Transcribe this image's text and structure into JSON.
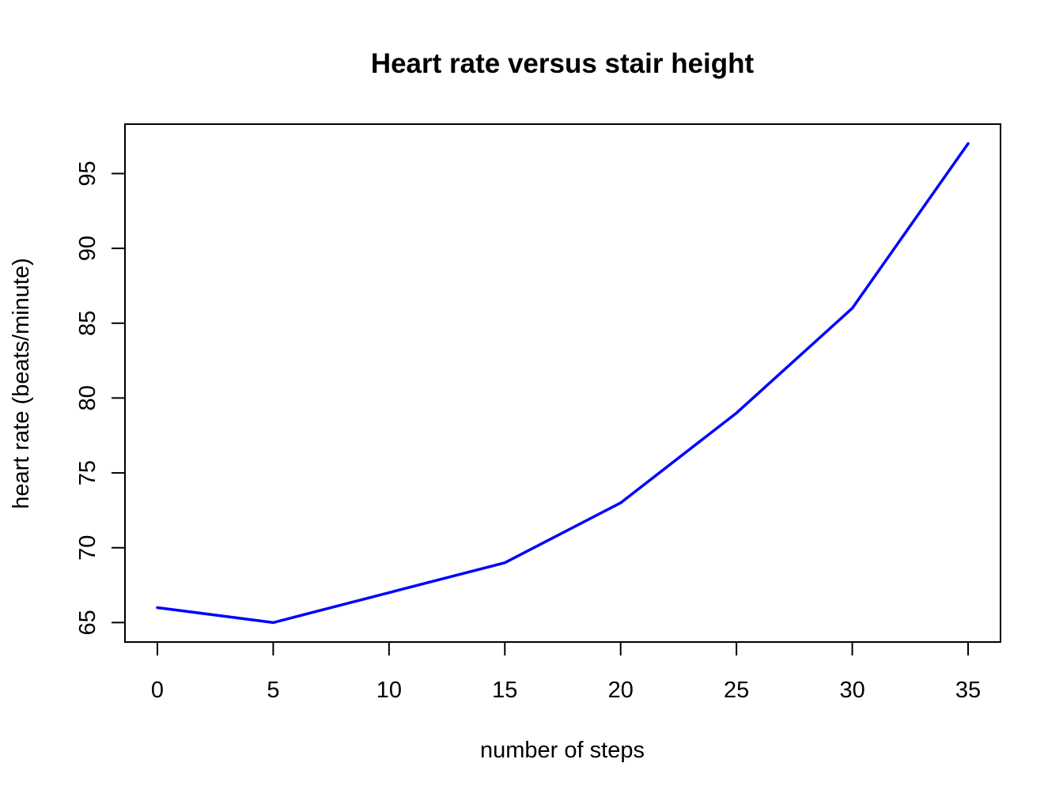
{
  "chart_data": {
    "type": "line",
    "title": "Heart rate versus stair height",
    "xlabel": "number of steps",
    "ylabel": "heart rate (beats/minute)",
    "x": [
      0,
      5,
      10,
      15,
      20,
      25,
      30,
      35
    ],
    "series": [
      {
        "values": [
          66,
          65,
          67,
          69,
          73,
          79,
          86,
          97
        ],
        "color": "#0000ff"
      }
    ],
    "xlim": [
      -1.4,
      36.4
    ],
    "ylim": [
      63.7,
      98.3
    ],
    "xticks": [
      0,
      5,
      10,
      15,
      20,
      25,
      30,
      35
    ],
    "yticks": [
      65,
      70,
      75,
      80,
      85,
      90,
      95
    ],
    "xtick_labels": [
      "0",
      "5",
      "10",
      "15",
      "20",
      "25",
      "30",
      "35"
    ],
    "ytick_labels": [
      "65",
      "70",
      "75",
      "80",
      "85",
      "90",
      "95"
    ],
    "grid": false,
    "legend": "none"
  }
}
